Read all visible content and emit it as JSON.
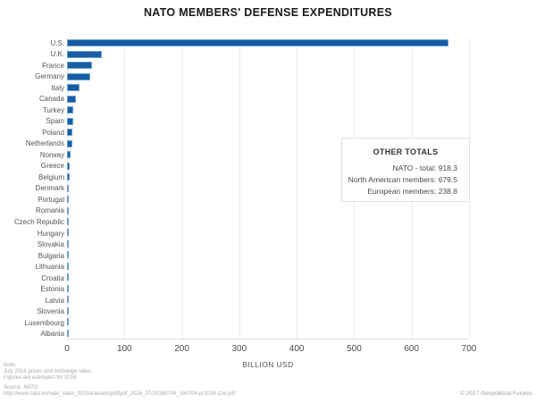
{
  "chart_data": {
    "type": "bar",
    "orientation": "horizontal",
    "title": "NATO MEMBERS' DEFENSE EXPENDITURES",
    "xlabel": "BILLION USD",
    "xlim": [
      0,
      700
    ],
    "xticks": [
      0,
      100,
      200,
      300,
      400,
      500,
      600,
      700
    ],
    "grid": true,
    "legend": false,
    "bar_color": "#175da4",
    "bar_border_color": "#6e9fd3",
    "categories": [
      "U.S.",
      "U.K.",
      "France",
      "Germany",
      "Italy",
      "Canada",
      "Turkey",
      "Spain",
      "Poland",
      "Netherlands",
      "Norway",
      "Greece",
      "Belgium",
      "Denmark",
      "Portugal",
      "Romania",
      "Czech Republic",
      "Hungary",
      "Slovakia",
      "Bulgaria",
      "Lithuania",
      "Croatia",
      "Estonia",
      "Latvia",
      "Slovenia",
      "Luxembourg",
      "Albania"
    ],
    "values": [
      664.1,
      60.3,
      43.6,
      40.7,
      21.9,
      15.4,
      11.6,
      11.1,
      9.1,
      8.9,
      6.1,
      4.6,
      4.0,
      3.6,
      2.8,
      2.7,
      1.9,
      1.3,
      1.0,
      0.7,
      0.6,
      0.6,
      0.5,
      0.4,
      0.4,
      0.2,
      0.1
    ]
  },
  "totals_box": {
    "title": "OTHER TOTALS",
    "rows": [
      {
        "label": "NATO - total",
        "value": "918.3"
      },
      {
        "label": "North American members",
        "value": "679.5"
      },
      {
        "label": "European members",
        "value": "238.8"
      }
    ]
  },
  "footer": {
    "note_lines": [
      "Note:",
      "July 2016 prices and exchange rates",
      "Figures are estimates for 2016"
    ],
    "source_lines": [
      "Source: NATO",
      "http://www.nato.int/nato_static_fl2014/assets/pdf/pdf_2016_07/20160704_160704-pr2016-116.pdf"
    ],
    "copyright": "© 2017 Geopolitical Futures"
  }
}
